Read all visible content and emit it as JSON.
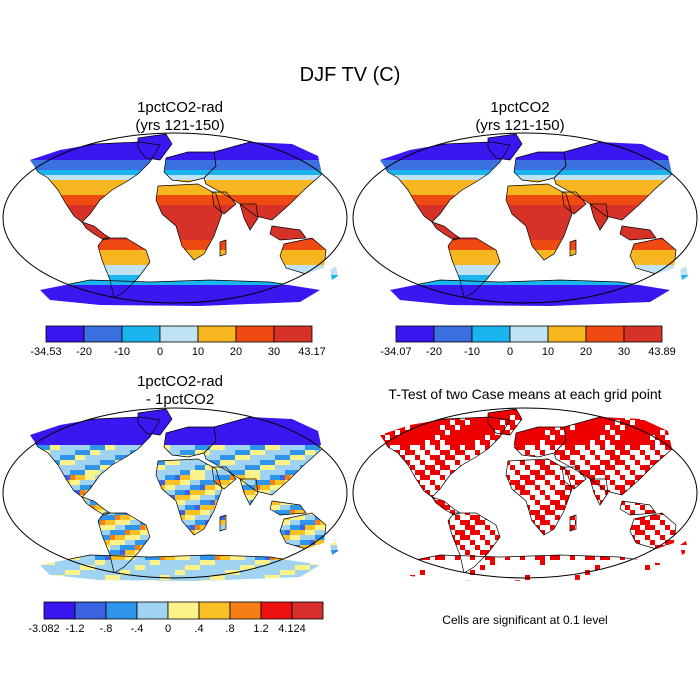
{
  "figure": {
    "title": "DJF TV (C)",
    "panels": [
      {
        "id": "case1",
        "title_line1": "1pctCO2-rad",
        "title_line2": "(yrs 121-150)",
        "palette": [
          "#3a16f0",
          "#3b70e0",
          "#1ab5ee",
          "#bfe3f2",
          "#f7b51f",
          "#ef4a12",
          "#d63228"
        ],
        "colorbar_labels": [
          "-34.53",
          "-20",
          "-10",
          "0",
          "10",
          "20",
          "30",
          "43.17"
        ]
      },
      {
        "id": "case2",
        "title_line1": "1pctCO2",
        "title_line2": "(yrs 121-150)",
        "palette": [
          "#3a16f0",
          "#3b70e0",
          "#1ab5ee",
          "#bfe3f2",
          "#f7b51f",
          "#ef4a12",
          "#d63228"
        ],
        "colorbar_labels": [
          "-34.07",
          "-20",
          "-10",
          "0",
          "10",
          "20",
          "30",
          "43.89"
        ]
      },
      {
        "id": "difference",
        "title_line1": "1pctCO2-rad",
        "title_line2": "- 1pctCO2",
        "palette": [
          "#3a16f0",
          "#3b63e2",
          "#2f95ec",
          "#9fd3f1",
          "#fbf28a",
          "#f9c126",
          "#f57f14",
          "#ef1111",
          "#d92e2e"
        ],
        "colorbar_labels": [
          "-3.082",
          "-1.2",
          "-.8",
          "-.4",
          "0",
          ".4",
          ".8",
          "1.2",
          "4.124"
        ]
      },
      {
        "id": "ttest",
        "title_line1": "T-Test of two Case means at each grid point",
        "significance_color": "#ee0000",
        "note": "Cells are significant at 0.1 level"
      }
    ]
  }
}
